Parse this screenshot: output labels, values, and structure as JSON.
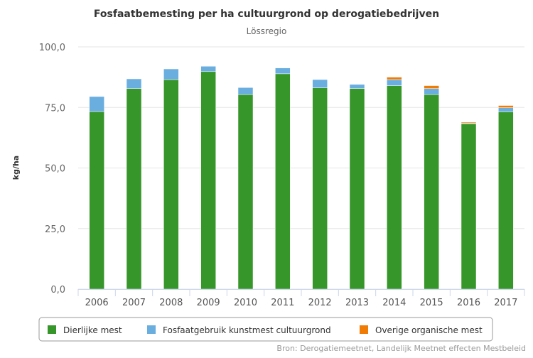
{
  "chart_data": {
    "type": "bar",
    "stacked": true,
    "title": "Fosfaatbemesting per ha cultuurgrond op derogatiebedrijven",
    "subtitle": "Lössregio",
    "xlabel": "",
    "ylabel": "kg/ha",
    "ylim": [
      0,
      100
    ],
    "yticks": [
      "0,0",
      "25,0",
      "50,0",
      "75,0",
      "100,0"
    ],
    "ytick_values": [
      0,
      25,
      50,
      75,
      100
    ],
    "grid": true,
    "legend_position": "bottom",
    "categories": [
      "2006",
      "2007",
      "2008",
      "2009",
      "2010",
      "2011",
      "2012",
      "2013",
      "2014",
      "2015",
      "2016",
      "2017"
    ],
    "series": [
      {
        "name": "Dierlijke mest",
        "color": "#36962a",
        "values": [
          73.3,
          82.8,
          86.5,
          89.8,
          80.3,
          88.9,
          83.1,
          82.8,
          84.0,
          80.3,
          68.3,
          73.2
        ]
      },
      {
        "name": "Fosfaatgebruik kunstmest cultuurgrond",
        "color": "#6aaee0",
        "values": [
          6.2,
          4.0,
          4.4,
          2.2,
          2.9,
          2.4,
          3.4,
          1.7,
          2.5,
          2.5,
          0.2,
          1.7
        ]
      },
      {
        "name": "Overige organische mest",
        "color": "#f07b05",
        "values": [
          0,
          0,
          0,
          0,
          0,
          0,
          0,
          0,
          1.0,
          1.2,
          0.4,
          0.9
        ]
      }
    ],
    "source": "Bron: Derogatiemeetnet, Landelijk Meetnet effecten Mestbeleid"
  }
}
